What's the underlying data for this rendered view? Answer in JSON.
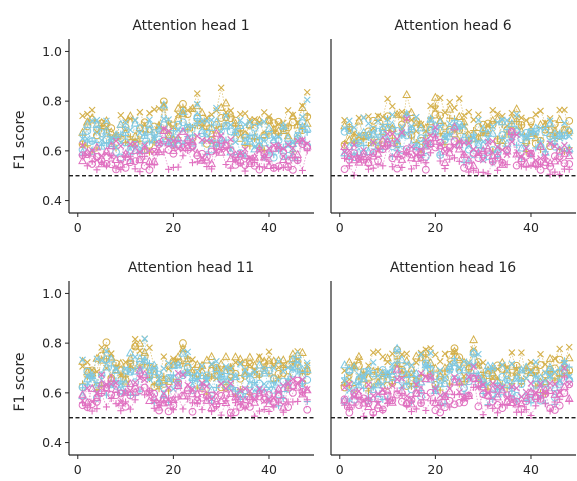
{
  "chart_data": {
    "type": "scatter",
    "subtype": "small-multiples line-scatter (dotted connecting lines)",
    "layout": {
      "rows": 2,
      "cols": 2,
      "sharex": true,
      "sharey": true
    },
    "xlim": [
      -1,
      49
    ],
    "ylim": [
      0.35,
      1.05
    ],
    "xticks": [
      0,
      20,
      40
    ],
    "yticks": [
      0.4,
      0.6,
      0.8,
      1.0
    ],
    "ytick_labels": [
      "0.4",
      "0.6",
      "0.8",
      "1.0"
    ],
    "ylabel": "F1 score",
    "xlabel": "",
    "grid": false,
    "legend": "none",
    "reference_line": {
      "y": 0.5,
      "style": "dashed",
      "color": "#000000"
    },
    "markers": [
      "plus",
      "circle",
      "triangle",
      "x"
    ],
    "colors": [
      "#d4b04b",
      "#7ec8e3",
      "#e070c0"
    ],
    "series_groups_per_panel": [
      {
        "color": "#d4b04b",
        "level": 0.68,
        "spread": 0.07
      },
      {
        "color": "#7ec8e3",
        "level": 0.64,
        "spread": 0.08
      },
      {
        "color": "#e070c0",
        "level": 0.57,
        "spread": 0.05
      }
    ],
    "panels": [
      {
        "title": "Attention head 1",
        "peak_x": [
          18,
          22,
          25,
          30,
          48
        ]
      },
      {
        "title": "Attention head 6",
        "peak_x": [
          10,
          14,
          20,
          24,
          36
        ]
      },
      {
        "title": "Attention head 11",
        "peak_x": [
          6,
          12,
          14,
          22,
          46
        ]
      },
      {
        "title": "Attention head 16",
        "peak_x": [
          12,
          18,
          24,
          28,
          47
        ]
      }
    ]
  }
}
